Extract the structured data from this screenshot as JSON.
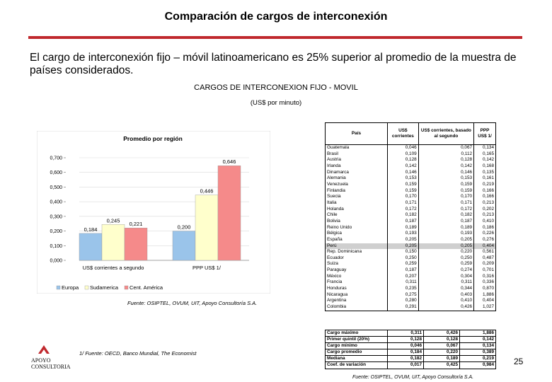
{
  "title": "Comparación de cargos de interconexión",
  "intro": "El cargo de interconexión fijo – móvil latinoamericano es 25% superior al promedio de la muestra de países considerados.",
  "subtitle": "CARGOS DE INTERCONEXION FIJO - MOVIL",
  "subtitle_units": "(US$ por minuto)",
  "chart_data": {
    "type": "bar",
    "title": "Promedio por región",
    "categories": [
      "US$ corrientes  a  segundo",
      "PPP US$ 1/"
    ],
    "series": [
      {
        "name": "Europa",
        "values": [
          0.184,
          0.2
        ],
        "color": "#9ac4ea"
      },
      {
        "name": "Sudamerica",
        "values": [
          0.245,
          0.446
        ],
        "color": "#ffffcc"
      },
      {
        "name": "Cent. América",
        "values": [
          0.221,
          0.646
        ],
        "color": "#f58a8a"
      }
    ],
    "value_labels": [
      [
        "0,184",
        "0,245",
        "0,221"
      ],
      [
        "0,200",
        "0,446",
        "0,646"
      ]
    ],
    "yticks": [
      "0,000",
      "0,100",
      "0,200",
      "0,300",
      "0,400",
      "0,500",
      "0,600",
      "0,700"
    ],
    "ylim": [
      0,
      0.7
    ],
    "legend": [
      "Europa",
      "Sudamerica",
      "Cent. América"
    ]
  },
  "fuente_chart": "Fuente: OSIPTEL, OVUM, UIT, Apoyo Consultoría S.A.",
  "fuente_note": "1/ Fuente: OECD, Banco Mundial, The Economist",
  "logo": {
    "word1": "APOYO",
    "word2": "CONSULTORIA"
  },
  "page_number": "25",
  "fuente_table": "Fuente: OSIPTEL, OVUM, UIT, Apoyo Consultoría S.A.",
  "table": {
    "headers": [
      "País",
      "US$ corrientes",
      "US$ corrientes, basado al segundo",
      "PPP US$ 1/"
    ],
    "rows": [
      [
        "Guatemala",
        "0,046",
        "0,067",
        "0,134"
      ],
      [
        "Brasil",
        "0,109",
        "0,112",
        "0,165"
      ],
      [
        "Austria",
        "0,128",
        "0,128",
        "0,142"
      ],
      [
        "Irlanda",
        "0,142",
        "0,142",
        "0,168"
      ],
      [
        "Dinamarca",
        "0,146",
        "0,146",
        "0,135"
      ],
      [
        "Alemania",
        "0,153",
        "0,153",
        "0,161"
      ],
      [
        "Venezuela",
        "0,159",
        "0,159",
        "0,219"
      ],
      [
        "Finlandia",
        "0,159",
        "0,159",
        "0,166"
      ],
      [
        "Suecia",
        "0,170",
        "0,170",
        "0,166"
      ],
      [
        "Italia",
        "0,171",
        "0,171",
        "0,213"
      ],
      [
        "Holanda",
        "0,172",
        "0,172",
        "0,202"
      ],
      [
        "Chile",
        "0,182",
        "0,182",
        "0,213"
      ],
      [
        "Bolivia",
        "0,187",
        "0,187",
        "0,410"
      ],
      [
        "Reino Unido",
        "0,189",
        "0,189",
        "0,186"
      ],
      [
        "Bélgica",
        "0,193",
        "0,193",
        "0,226"
      ],
      [
        "España",
        "0,205",
        "0,205",
        "0,276"
      ],
      [
        "Perú",
        "0,205",
        "0,205",
        "0,404"
      ],
      [
        "Rep. Dominicana",
        "0,150",
        "0,220",
        "0,561"
      ],
      [
        "Ecuador",
        "0,250",
        "0,250",
        "0,487"
      ],
      [
        "Suiza",
        "0,259",
        "0,259",
        "0,209"
      ],
      [
        "Paraguay",
        "0,187",
        "0,274",
        "0,701"
      ],
      [
        "México",
        "0,207",
        "0,304",
        "0,316"
      ],
      [
        "Francia",
        "0,311",
        "0,311",
        "0,336"
      ],
      [
        "Honduras",
        "0,235",
        "0,344",
        "0,870"
      ],
      [
        "Nicaragua",
        "0,275",
        "0,403",
        "1,886"
      ],
      [
        "Argentina",
        "0,280",
        "0,410",
        "0,404"
      ],
      [
        "Colombia",
        "0,291",
        "0,426",
        "1,027"
      ]
    ],
    "highlight_row": 16,
    "summary": [
      [
        "Cargo máximo",
        "0,311",
        "0,426",
        "1,886"
      ],
      [
        "Primer quintil (20%)",
        "0,128",
        "0,128",
        "0,142"
      ],
      [
        "Cargo mínimo",
        "0,046",
        "0,067",
        "0,134"
      ],
      [
        "Cargo promedio",
        "0,184",
        "0,220",
        "0,389"
      ],
      [
        "Mediana",
        "0,182",
        "0,189",
        "0,219"
      ],
      [
        "Coef. de variación",
        "0,017",
        "0,425",
        "0,984"
      ]
    ]
  }
}
